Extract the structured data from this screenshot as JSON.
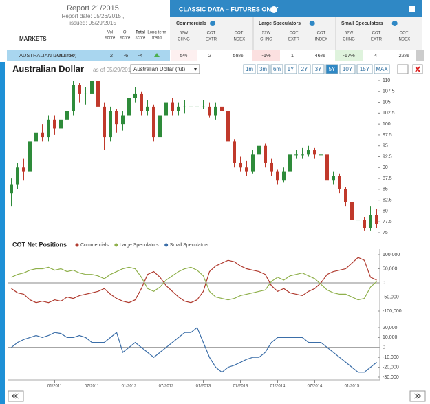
{
  "header": {
    "report": "Report 21/2015",
    "report_date": "Report date: 05/26/2015 ,",
    "issued": "issued: 05/29/2015"
  },
  "table": {
    "title": "CLASSIC DATA – FUTURES ONLY",
    "markets": "MARKETS",
    "columns": [
      [
        "Vol",
        "score"
      ],
      [
        "OI",
        "score"
      ],
      [
        "Total",
        "score"
      ],
      [
        "Long-term",
        "trend"
      ]
    ],
    "groups": [
      {
        "name": "Commercials",
        "columns": [
          [
            "52W",
            "CHNG"
          ],
          [
            "COT",
            "EXTR"
          ],
          [
            "COT",
            "INDEX"
          ]
        ]
      },
      {
        "name": "Large Speculators",
        "columns": [
          [
            "52W",
            "CHNG"
          ],
          [
            "COT",
            "EXTR"
          ],
          [
            "COT",
            "INDEX"
          ]
        ]
      },
      {
        "name": "Small Speculators",
        "columns": [
          [
            "52W",
            "CHNG"
          ],
          [
            "COT",
            "EXTR"
          ],
          [
            "COT",
            "INDEX"
          ]
        ]
      }
    ],
    "row": [
      "AUSTRALIAN DOLLAR",
      "(AUD/USD)",
      2,
      -6,
      -4,
      "5%",
      2,
      "58%",
      "-1%",
      1,
      "46%",
      "-17%",
      4,
      "22%"
    ]
  },
  "toolbar": {
    "as_of": "as of 05/29/2015",
    "select": "Australian Dollar (fut)",
    "ranges": [
      "1m",
      "3m",
      "6m",
      "1Y",
      "2Y",
      "3Y",
      "5Y",
      "10Y",
      "15Y",
      "MAX"
    ],
    "active": "5Y"
  },
  "chart_data": [
    {
      "type": "candlestick",
      "title": "Australian Dollar",
      "up_color": "#2e8b3a",
      "down_color": "#c0392b",
      "x": [
        "06/2010",
        "07/2010",
        "08/2010",
        "09/2010",
        "10/2010",
        "11/2010",
        "12/2010",
        "01/2011",
        "02/2011",
        "03/2011",
        "04/2011",
        "05/2011",
        "06/2011",
        "07/2011",
        "08/2011",
        "09/2011",
        "10/2011",
        "11/2011",
        "12/2011",
        "01/2012",
        "02/2012",
        "03/2012",
        "04/2012",
        "05/2012",
        "06/2012",
        "07/2012",
        "08/2012",
        "09/2012",
        "10/2012",
        "11/2012",
        "12/2012",
        "01/2013",
        "02/2013",
        "03/2013",
        "04/2013",
        "05/2013",
        "06/2013",
        "07/2013",
        "08/2013",
        "09/2013",
        "10/2013",
        "11/2013",
        "12/2013",
        "01/2014",
        "02/2014",
        "03/2014",
        "04/2014",
        "05/2014",
        "06/2014",
        "07/2014",
        "08/2014",
        "09/2014",
        "10/2014",
        "11/2014",
        "12/2014",
        "01/2015",
        "02/2015",
        "03/2015",
        "04/2015",
        "05/2015"
      ],
      "open": [
        84,
        86,
        90,
        89,
        96,
        98,
        97,
        101,
        99,
        101,
        103,
        109,
        107,
        107,
        110,
        104,
        97,
        103,
        100,
        102,
        106,
        107,
        103,
        104,
        97,
        102,
        105,
        103,
        104,
        104,
        104,
        104,
        104,
        102,
        104,
        103,
        96,
        91,
        90,
        89,
        93,
        95,
        91,
        89,
        87,
        89,
        93,
        93,
        93,
        94,
        93,
        93,
        87,
        88,
        85,
        82,
        78,
        78,
        76,
        79
      ],
      "high": [
        87.5,
        91,
        92,
        97,
        99.5,
        100,
        102,
        102,
        102.5,
        104,
        110,
        109.5,
        108.5,
        111,
        110.5,
        105,
        104,
        103.5,
        103,
        107,
        108.5,
        107.5,
        105.5,
        104.5,
        102.5,
        106,
        106,
        105,
        105.5,
        105,
        105.5,
        105.5,
        105,
        105,
        105.5,
        104,
        96.5,
        92.5,
        91.5,
        94,
        96.5,
        95.5,
        92,
        89.5,
        90,
        93.5,
        94,
        94.5,
        95,
        94.5,
        94,
        93.5,
        89,
        88.5,
        85.5,
        82,
        79,
        78.5,
        81,
        80.5
      ],
      "low": [
        81,
        85,
        87,
        88,
        95,
        96,
        96,
        97.5,
        98,
        100,
        102,
        105,
        104.5,
        105,
        103,
        94,
        96,
        98,
        98.5,
        101,
        105,
        102,
        102,
        96,
        96,
        101,
        102,
        102,
        102.5,
        103,
        103,
        103.5,
        101.5,
        101,
        102,
        95,
        90,
        89,
        88,
        88.5,
        92.5,
        90,
        88,
        86,
        86.5,
        88.5,
        92,
        92,
        92.5,
        92,
        92,
        86,
        86,
        84,
        81,
        76.5,
        76,
        75.5,
        75.5,
        76
      ],
      "close": [
        86,
        90,
        89,
        96,
        98,
        97,
        101,
        99,
        101,
        103,
        109,
        107,
        107,
        110,
        104,
        97,
        103,
        100,
        102,
        106,
        107,
        103,
        104,
        97,
        102,
        105,
        103,
        104,
        104,
        104,
        104,
        104,
        102,
        104,
        103,
        96,
        91,
        90,
        89,
        93,
        95,
        91,
        89,
        87,
        89,
        93,
        93,
        93,
        94,
        93,
        93,
        87,
        88,
        85,
        82,
        78,
        78,
        76,
        79,
        77
      ],
      "ylim": [
        75,
        110
      ],
      "yticks": [
        75,
        77.5,
        80,
        82.5,
        85,
        87.5,
        90,
        92.5,
        95,
        97.5,
        100,
        102.5,
        105,
        107.5,
        110
      ]
    },
    {
      "type": "line",
      "title": "COT Net Positions",
      "x": [
        "06/2010",
        "07/2010",
        "08/2010",
        "09/2010",
        "10/2010",
        "11/2010",
        "12/2010",
        "01/2011",
        "02/2011",
        "03/2011",
        "04/2011",
        "05/2011",
        "06/2011",
        "07/2011",
        "08/2011",
        "09/2011",
        "10/2011",
        "11/2011",
        "12/2011",
        "01/2012",
        "02/2012",
        "03/2012",
        "04/2012",
        "05/2012",
        "06/2012",
        "07/2012",
        "08/2012",
        "09/2012",
        "10/2012",
        "11/2012",
        "12/2012",
        "01/2013",
        "02/2013",
        "03/2013",
        "04/2013",
        "05/2013",
        "06/2013",
        "07/2013",
        "08/2013",
        "09/2013",
        "10/2013",
        "11/2013",
        "12/2013",
        "01/2014",
        "02/2014",
        "03/2014",
        "04/2014",
        "05/2014",
        "06/2014",
        "07/2014",
        "08/2014",
        "09/2014",
        "10/2014",
        "11/2014",
        "12/2014",
        "01/2015",
        "02/2015",
        "03/2015",
        "04/2015",
        "05/2015"
      ],
      "xticks": [
        "01/2011",
        "07/2011",
        "01/2012",
        "07/2012",
        "01/2013",
        "07/2013",
        "01/2014",
        "07/2014",
        "01/2015"
      ],
      "series": [
        {
          "name": "Commercials",
          "color": "#b03a2e",
          "values": [
            -20000,
            -35000,
            -40000,
            -60000,
            -70000,
            -65000,
            -70000,
            -60000,
            -65000,
            -50000,
            -55000,
            -45000,
            -40000,
            -35000,
            -30000,
            -20000,
            -40000,
            -55000,
            -65000,
            -70000,
            -60000,
            -20000,
            30000,
            40000,
            20000,
            -10000,
            -30000,
            -50000,
            -65000,
            -70000,
            -60000,
            -30000,
            40000,
            60000,
            70000,
            80000,
            75000,
            60000,
            50000,
            45000,
            40000,
            30000,
            -10000,
            -30000,
            -20000,
            -35000,
            -40000,
            -45000,
            -30000,
            -20000,
            0,
            30000,
            40000,
            45000,
            50000,
            70000,
            90000,
            80000,
            20000,
            10000
          ]
        },
        {
          "name": "Large Speculators",
          "color": "#8fb04b",
          "values": [
            20000,
            30000,
            35000,
            45000,
            50000,
            50000,
            55000,
            45000,
            50000,
            40000,
            45000,
            35000,
            30000,
            30000,
            25000,
            15000,
            30000,
            40000,
            50000,
            55000,
            50000,
            20000,
            -20000,
            -30000,
            -15000,
            10000,
            25000,
            40000,
            50000,
            55000,
            45000,
            25000,
            -30000,
            -50000,
            -55000,
            -60000,
            -55000,
            -45000,
            -40000,
            -35000,
            -30000,
            -25000,
            5000,
            20000,
            10000,
            25000,
            30000,
            35000,
            25000,
            15000,
            -5000,
            -25000,
            -35000,
            -40000,
            -40000,
            -50000,
            -60000,
            -55000,
            -15000,
            5000
          ]
        },
        {
          "name": "Small Speculators",
          "color": "#3b6ea8",
          "axis": "y2",
          "values": [
            0,
            5000,
            8000,
            10000,
            12000,
            10000,
            12000,
            15000,
            14000,
            10000,
            10000,
            12000,
            10000,
            5000,
            5000,
            5000,
            10000,
            15000,
            -5000,
            0,
            5000,
            0,
            -5000,
            -10000,
            -5000,
            0,
            5000,
            10000,
            15000,
            15000,
            20000,
            5000,
            -10000,
            -20000,
            -25000,
            -20000,
            -18000,
            -15000,
            -12000,
            -10000,
            -10000,
            -5000,
            5000,
            10000,
            10000,
            10000,
            10000,
            10000,
            5000,
            5000,
            5000,
            0,
            -5000,
            -10000,
            -15000,
            -20000,
            -25000,
            -25000,
            -20000,
            -15000
          ]
        }
      ],
      "ylim": [
        -100000,
        100000
      ],
      "yticks": [
        {
          "value": 100000,
          "label": "100,000"
        },
        {
          "value": 50000,
          "label": "50,000"
        },
        0,
        {
          "value": -50000,
          "label": "-50,000"
        },
        {
          "value": -100000,
          "label": "-100,000"
        }
      ],
      "y2lim": [
        -30000,
        20000
      ],
      "y2ticks": [
        {
          "value": 20000,
          "label": "20,000"
        },
        {
          "value": 10000,
          "label": "10,000"
        },
        0,
        {
          "value": -10000,
          "label": "-10,000"
        },
        {
          "value": -20000,
          "label": "-20,000"
        },
        {
          "value": -30000,
          "label": "-30,000"
        }
      ]
    }
  ]
}
